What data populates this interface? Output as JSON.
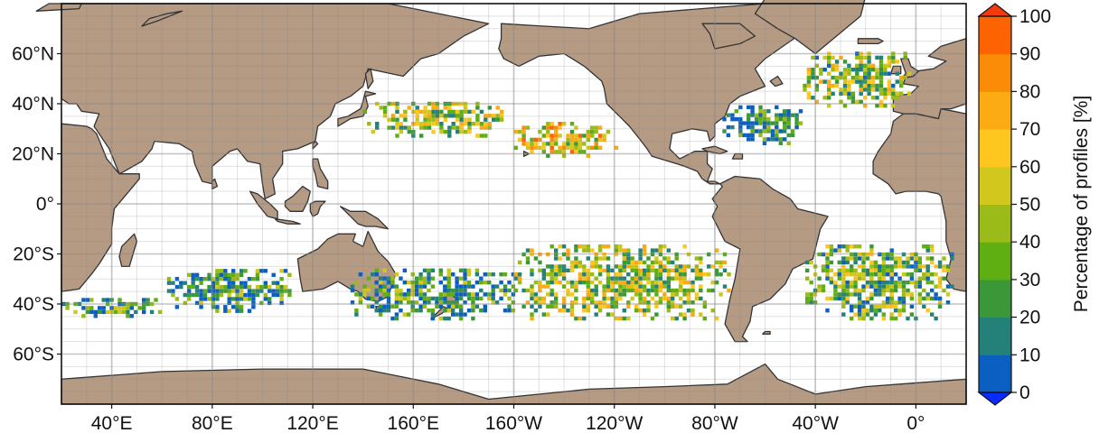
{
  "map": {
    "projection": "plate-carree",
    "central_longitude": -160,
    "lon_range": [
      20,
      380
    ],
    "lat_range": [
      -80,
      80
    ],
    "land_color": "#b59a84",
    "coast_color": "#333333",
    "ocean_color": "#ffffff",
    "gridlines": "on",
    "x_ticks": [
      {
        "lon": 40,
        "label": "40°E"
      },
      {
        "lon": 80,
        "label": "80°E"
      },
      {
        "lon": 120,
        "label": "120°E"
      },
      {
        "lon": 160,
        "label": "160°E"
      },
      {
        "lon": 200,
        "label": "160°W"
      },
      {
        "lon": 240,
        "label": "120°W"
      },
      {
        "lon": 280,
        "label": "80°W"
      },
      {
        "lon": 320,
        "label": "40°W"
      },
      {
        "lon": 360,
        "label": "0°"
      }
    ],
    "y_ticks": [
      {
        "lat": 60,
        "label": "60°N"
      },
      {
        "lat": 40,
        "label": "40°N"
      },
      {
        "lat": 20,
        "label": "20°N"
      },
      {
        "lat": 0,
        "label": "0°"
      },
      {
        "lat": -20,
        "label": "20°S"
      },
      {
        "lat": -40,
        "label": "40°S"
      },
      {
        "lat": -60,
        "label": "60°S"
      }
    ]
  },
  "colorbar": {
    "label": "Percentage of profiles [%]",
    "extend": "both",
    "ticks": [
      "0",
      "10",
      "20",
      "30",
      "40",
      "50",
      "60",
      "70",
      "80",
      "90",
      "100"
    ],
    "bins": [
      "#0b5fc0",
      "#24817a",
      "#3b9838",
      "#5fae12",
      "#9bbb18",
      "#d2c71d",
      "#ffc61f",
      "#fdab13",
      "#fb8c08",
      "#fd6401"
    ],
    "under_color": "#0a2bff",
    "over_color": "#f23a0d"
  },
  "chart_data": {
    "type": "heatmap",
    "title": "",
    "colorbar_label": "Percentage of profiles [%]",
    "value_range": [
      0,
      100
    ],
    "regions": [
      {
        "lon": [
          140,
          195
        ],
        "lat": [
          28,
          42
        ],
        "mean": 45
      },
      {
        "lon": [
          200,
          240
        ],
        "lat": [
          20,
          33
        ],
        "mean": 60
      },
      {
        "lon": [
          283,
          315
        ],
        "lat": [
          25,
          40
        ],
        "mean": 15
      },
      {
        "lon": [
          315,
          358
        ],
        "lat": [
          40,
          62
        ],
        "mean": 40
      },
      {
        "lon": [
          20,
          60
        ],
        "lat": [
          -44,
          -37
        ],
        "mean": 25
      },
      {
        "lon": [
          62,
          110
        ],
        "lat": [
          -42,
          -25
        ],
        "mean": 20
      },
      {
        "lon": [
          135,
          200
        ],
        "lat": [
          -45,
          -25
        ],
        "mean": 25
      },
      {
        "lon": [
          200,
          285
        ],
        "lat": [
          -45,
          -15
        ],
        "mean": 45
      },
      {
        "lon": [
          316,
          375
        ],
        "lat": [
          -45,
          -15
        ],
        "mean": 35
      }
    ]
  }
}
